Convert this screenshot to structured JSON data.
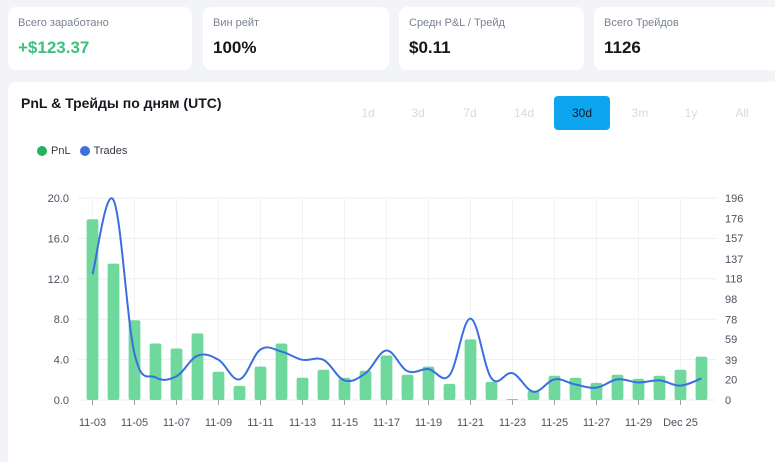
{
  "stats": [
    {
      "label": "Всего заработано",
      "value": "+$123.37",
      "positive": true
    },
    {
      "label": "Вин рейт",
      "value": "100%",
      "positive": false
    },
    {
      "label": "Средн P&L / Трейд",
      "value": "$0.11",
      "positive": false
    },
    {
      "label": "Всего Трейдов",
      "value": "1126",
      "positive": false
    }
  ],
  "panel": {
    "title": "PnL & Трейды по дням (UTC)",
    "timeframes": [
      "1d",
      "3d",
      "7d",
      "14d",
      "30d",
      "3m",
      "1y",
      "All"
    ],
    "active_timeframe": "30d"
  },
  "colors": {
    "pnl": "#6fd89c",
    "pnl_dot": "#22b35e",
    "trades": "#3b6fe0",
    "active_tab": "#0ea5f0"
  },
  "chart_data": {
    "type": "bar+line",
    "legend": [
      "PnL",
      "Trades"
    ],
    "categories": [
      "11-03",
      "11-04",
      "11-05",
      "11-06",
      "11-07",
      "11-08",
      "11-09",
      "11-10",
      "11-11",
      "11-12",
      "11-13",
      "11-14",
      "11-15",
      "11-16",
      "11-17",
      "11-18",
      "11-19",
      "11-20",
      "11-21",
      "11-22",
      "11-23",
      "11-24",
      "11-25",
      "11-26",
      "11-27",
      "11-28",
      "11-29",
      "11-30",
      "Dec 25",
      "12-02"
    ],
    "x_tick_labels": [
      "11-03",
      "11-05",
      "11-07",
      "11-09",
      "11-11",
      "11-13",
      "11-15",
      "11-17",
      "11-19",
      "11-21",
      "11-23",
      "11-25",
      "11-27",
      "11-29",
      "Dec 25"
    ],
    "series": [
      {
        "name": "PnL",
        "type": "bar",
        "axis": "left",
        "values": [
          17.9,
          13.5,
          7.9,
          5.6,
          5.1,
          6.6,
          2.8,
          1.4,
          3.3,
          5.6,
          2.2,
          3.0,
          2.2,
          2.9,
          4.4,
          2.5,
          3.3,
          1.6,
          6.0,
          1.8,
          0.1,
          0.9,
          2.4,
          2.2,
          1.7,
          2.5,
          2.1,
          2.4,
          3.0,
          4.3
        ]
      },
      {
        "name": "Trades",
        "type": "line",
        "axis": "right",
        "values": [
          122,
          194,
          45,
          22,
          23,
          43,
          39,
          20,
          49,
          47,
          39,
          39,
          19,
          26,
          48,
          28,
          30,
          24,
          79,
          21,
          26,
          8,
          20,
          15,
          12,
          20,
          17,
          19,
          14,
          21
        ]
      }
    ],
    "y_left": {
      "ticks": [
        "0.0",
        "4.0",
        "8.0",
        "12.0",
        "16.0",
        "20.0"
      ],
      "range": [
        0,
        20
      ]
    },
    "y_right": {
      "ticks": [
        "0",
        "20",
        "39",
        "59",
        "78",
        "98",
        "118",
        "137",
        "157",
        "176",
        "196"
      ],
      "range": [
        0,
        196
      ]
    },
    "grid": true
  }
}
